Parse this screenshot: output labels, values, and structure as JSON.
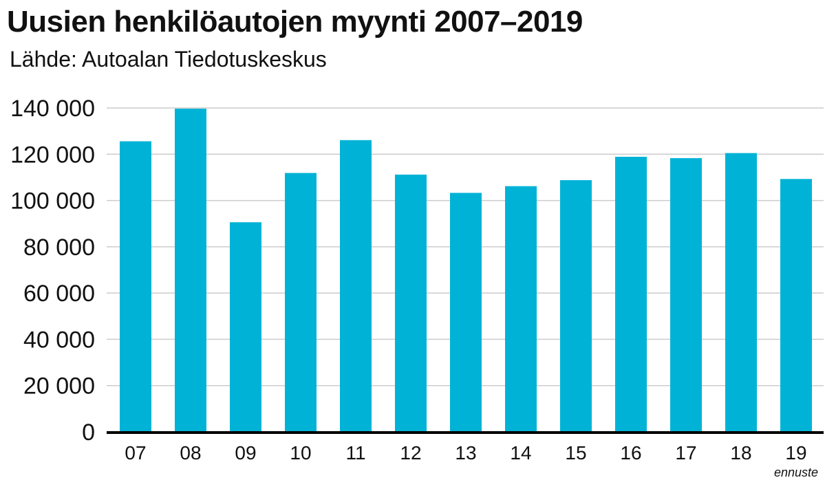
{
  "chart_data": {
    "type": "bar",
    "title": "Uusien henkilöautojen myynti 2007–2019",
    "subtitle": "Lähde: Autoalan Tiedotuskeskus",
    "xlabel": "",
    "ylabel": "",
    "categories": [
      "07",
      "08",
      "09",
      "10",
      "11",
      "12",
      "13",
      "14",
      "15",
      "16",
      "17",
      "18",
      "19"
    ],
    "values": [
      125600,
      139700,
      90600,
      111900,
      126100,
      111200,
      103300,
      106200,
      108800,
      118900,
      118300,
      120500,
      109300
    ],
    "ylim": [
      0,
      140000
    ],
    "yticks": [
      0,
      20000,
      40000,
      60000,
      80000,
      100000,
      120000,
      140000
    ],
    "ytick_labels": [
      "0",
      "20 000",
      "40 000",
      "60 000",
      "80 000",
      "100 000",
      "120 000",
      "140 000"
    ],
    "annotations": [
      {
        "category": "19",
        "text": "ennuste"
      }
    ],
    "grid": true,
    "bar_color": "#00B3D6",
    "grid_color": "#cccccc",
    "axis_color": "#000000"
  }
}
